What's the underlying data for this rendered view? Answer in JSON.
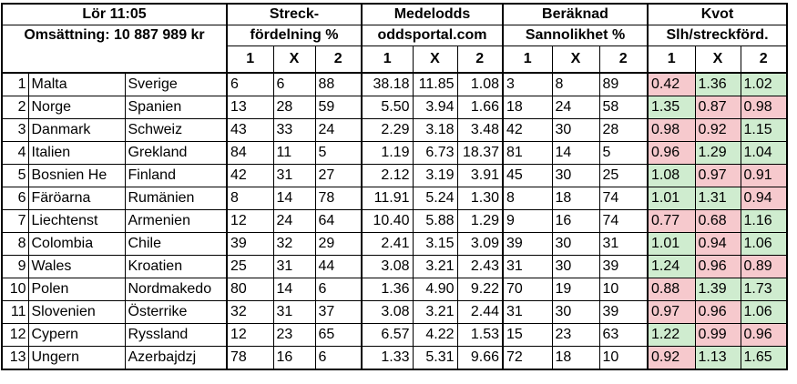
{
  "header": {
    "match_title": "Lör 11:05",
    "turnover": "Omsättning: 10 887 989 kr",
    "group1_line1": "Streck-",
    "group1_line2": "fördelning %",
    "group2_line1": "Medelodds",
    "group2_line2": "oddsportal.com",
    "group3_line1": "Beräknad",
    "group3_line2": "Sannolikhet %",
    "group4_line1": "Kvot",
    "group4_line2": "Slh/streckförd.",
    "sub": [
      "1",
      "X",
      "2"
    ]
  },
  "rows": [
    {
      "n": "1",
      "home": "Malta",
      "away": "Sverige",
      "s": [
        "6",
        "6",
        "88"
      ],
      "o": [
        "38.18",
        "11.85",
        "1.08"
      ],
      "p": [
        "3",
        "8",
        "89"
      ],
      "k": [
        "0.42",
        "1.36",
        "1.02"
      ],
      "kc": [
        "red",
        "green",
        "green"
      ]
    },
    {
      "n": "2",
      "home": "Norge",
      "away": "Spanien",
      "s": [
        "13",
        "28",
        "59"
      ],
      "o": [
        "5.50",
        "3.94",
        "1.66"
      ],
      "p": [
        "18",
        "24",
        "58"
      ],
      "k": [
        "1.35",
        "0.87",
        "0.98"
      ],
      "kc": [
        "green",
        "red",
        "red"
      ]
    },
    {
      "n": "3",
      "home": "Danmark",
      "away": "Schweiz",
      "s": [
        "43",
        "33",
        "24"
      ],
      "o": [
        "2.29",
        "3.18",
        "3.48"
      ],
      "p": [
        "42",
        "30",
        "28"
      ],
      "k": [
        "0.98",
        "0.92",
        "1.15"
      ],
      "kc": [
        "red",
        "red",
        "green"
      ]
    },
    {
      "n": "4",
      "home": "Italien",
      "away": "Grekland",
      "s": [
        "84",
        "11",
        "5"
      ],
      "o": [
        "1.19",
        "6.73",
        "18.37"
      ],
      "p": [
        "81",
        "14",
        "5"
      ],
      "k": [
        "0.96",
        "1.29",
        "1.04"
      ],
      "kc": [
        "red",
        "green",
        "green"
      ]
    },
    {
      "n": "5",
      "home": "Bosnien He",
      "away": "Finland",
      "s": [
        "42",
        "31",
        "27"
      ],
      "o": [
        "2.12",
        "3.19",
        "3.91"
      ],
      "p": [
        "45",
        "30",
        "25"
      ],
      "k": [
        "1.08",
        "0.97",
        "0.91"
      ],
      "kc": [
        "green",
        "red",
        "red"
      ]
    },
    {
      "n": "6",
      "home": "Färöarna",
      "away": "Rumänien",
      "s": [
        "8",
        "14",
        "78"
      ],
      "o": [
        "11.91",
        "5.24",
        "1.30"
      ],
      "p": [
        "8",
        "18",
        "74"
      ],
      "k": [
        "1.01",
        "1.31",
        "0.94"
      ],
      "kc": [
        "green",
        "green",
        "red"
      ]
    },
    {
      "n": "7",
      "home": "Liechtenst",
      "away": "Armenien",
      "s": [
        "12",
        "24",
        "64"
      ],
      "o": [
        "10.40",
        "5.88",
        "1.29"
      ],
      "p": [
        "9",
        "16",
        "74"
      ],
      "k": [
        "0.77",
        "0.68",
        "1.16"
      ],
      "kc": [
        "red",
        "red",
        "green"
      ]
    },
    {
      "n": "8",
      "home": "Colombia",
      "away": "Chile",
      "s": [
        "39",
        "32",
        "29"
      ],
      "o": [
        "2.41",
        "3.15",
        "3.09"
      ],
      "p": [
        "39",
        "30",
        "31"
      ],
      "k": [
        "1.01",
        "0.94",
        "1.06"
      ],
      "kc": [
        "green",
        "red",
        "green"
      ]
    },
    {
      "n": "9",
      "home": "Wales",
      "away": "Kroatien",
      "s": [
        "25",
        "31",
        "44"
      ],
      "o": [
        "3.08",
        "3.21",
        "2.43"
      ],
      "p": [
        "31",
        "30",
        "39"
      ],
      "k": [
        "1.24",
        "0.96",
        "0.89"
      ],
      "kc": [
        "green",
        "red",
        "red"
      ]
    },
    {
      "n": "10",
      "home": "Polen",
      "away": "Nordmakedo",
      "s": [
        "80",
        "14",
        "6"
      ],
      "o": [
        "1.36",
        "4.90",
        "9.22"
      ],
      "p": [
        "70",
        "19",
        "10"
      ],
      "k": [
        "0.88",
        "1.39",
        "1.73"
      ],
      "kc": [
        "red",
        "green",
        "green"
      ]
    },
    {
      "n": "11",
      "home": "Slovenien",
      "away": "Österrike",
      "s": [
        "32",
        "31",
        "37"
      ],
      "o": [
        "3.08",
        "3.21",
        "2.44"
      ],
      "p": [
        "31",
        "30",
        "39"
      ],
      "k": [
        "0.97",
        "0.96",
        "1.06"
      ],
      "kc": [
        "red",
        "red",
        "green"
      ]
    },
    {
      "n": "12",
      "home": "Cypern",
      "away": "Ryssland",
      "s": [
        "12",
        "23",
        "65"
      ],
      "o": [
        "6.57",
        "4.22",
        "1.53"
      ],
      "p": [
        "15",
        "23",
        "63"
      ],
      "k": [
        "1.22",
        "0.99",
        "0.96"
      ],
      "kc": [
        "green",
        "red",
        "red"
      ]
    },
    {
      "n": "13",
      "home": "Ungern",
      "away": "Azerbajdzj",
      "s": [
        "78",
        "16",
        "6"
      ],
      "o": [
        "1.33",
        "5.31",
        "9.66"
      ],
      "p": [
        "72",
        "18",
        "10"
      ],
      "k": [
        "0.92",
        "1.13",
        "1.65"
      ],
      "kc": [
        "red",
        "green",
        "green"
      ]
    }
  ],
  "colors": {
    "red": "#f6c9cd",
    "green": "#cfeccf"
  }
}
